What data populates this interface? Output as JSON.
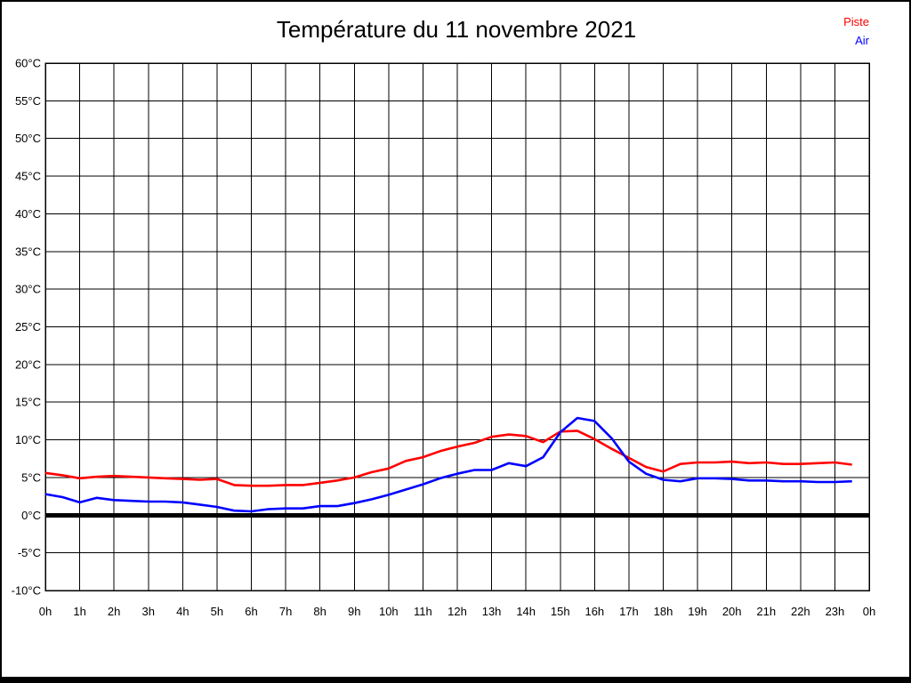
{
  "title": "Température du 11 novembre 2021",
  "legend": [
    {
      "label": "Piste",
      "color": "#ff0000"
    },
    {
      "label": "Air",
      "color": "#0000ff"
    }
  ],
  "colors": {
    "piste": "#ff0000",
    "air": "#0000ff",
    "grid": "#000000",
    "zero_line": "#000000",
    "background": "#ffffff",
    "text": "#000000"
  },
  "chart_data": {
    "type": "line",
    "title": "Température du 11 novembre 2021",
    "xlabel": "",
    "ylabel": "",
    "xlim": [
      0,
      24
    ],
    "ylim": [
      -10,
      60
    ],
    "y_step": 5,
    "x_step": 1,
    "grid": true,
    "zero_line_emphasized": true,
    "legend_position": "top-right",
    "x_tick_labels": [
      "0h",
      "1h",
      "2h",
      "3h",
      "4h",
      "5h",
      "6h",
      "7h",
      "8h",
      "9h",
      "10h",
      "11h",
      "12h",
      "13h",
      "14h",
      "15h",
      "16h",
      "17h",
      "18h",
      "19h",
      "20h",
      "21h",
      "22h",
      "23h",
      "0h"
    ],
    "y_tick_labels": [
      "60°C",
      "55°C",
      "50°C",
      "45°C",
      "40°C",
      "35°C",
      "30°C",
      "25°C",
      "20°C",
      "15°C",
      "10°C",
      "5°C",
      "0°C",
      "-5°C",
      "-10°C"
    ],
    "x": [
      0,
      0.5,
      1,
      1.5,
      2,
      2.5,
      3,
      3.5,
      4,
      4.5,
      5,
      5.5,
      6,
      6.5,
      7,
      7.5,
      8,
      8.5,
      9,
      9.5,
      10,
      10.5,
      11,
      11.5,
      12,
      12.5,
      13,
      13.5,
      14,
      14.5,
      15,
      15.5,
      16,
      16.5,
      17,
      17.5,
      18,
      18.5,
      19,
      19.5,
      20,
      20.5,
      21,
      21.5,
      22,
      22.5,
      23,
      23.5
    ],
    "series": [
      {
        "name": "Piste",
        "color": "#ff0000",
        "values": [
          5.6,
          5.3,
          4.9,
          5.1,
          5.2,
          5.1,
          5.0,
          4.9,
          4.8,
          4.7,
          4.8,
          4.0,
          3.9,
          3.9,
          4.0,
          4.0,
          4.3,
          4.6,
          5.0,
          5.7,
          6.2,
          7.2,
          7.7,
          8.5,
          9.1,
          9.6,
          10.4,
          10.7,
          10.5,
          9.7,
          11.1,
          11.2,
          10.1,
          8.8,
          7.6,
          6.4,
          5.8,
          6.8,
          7.0,
          7.0,
          7.1,
          6.9,
          7.0,
          6.8,
          6.8,
          6.9,
          7.0,
          6.7
        ]
      },
      {
        "name": "Air",
        "color": "#0000ff",
        "values": [
          2.8,
          2.4,
          1.7,
          2.3,
          2.0,
          1.9,
          1.8,
          1.8,
          1.7,
          1.4,
          1.1,
          0.6,
          0.5,
          0.8,
          0.9,
          0.9,
          1.2,
          1.2,
          1.6,
          2.1,
          2.7,
          3.4,
          4.1,
          4.9,
          5.5,
          6.0,
          6.0,
          6.9,
          6.5,
          7.7,
          11.0,
          12.9,
          12.5,
          10.2,
          7.1,
          5.5,
          4.7,
          4.5,
          4.9,
          4.9,
          4.8,
          4.6,
          4.6,
          4.5,
          4.5,
          4.4,
          4.4,
          4.5
        ]
      }
    ]
  }
}
